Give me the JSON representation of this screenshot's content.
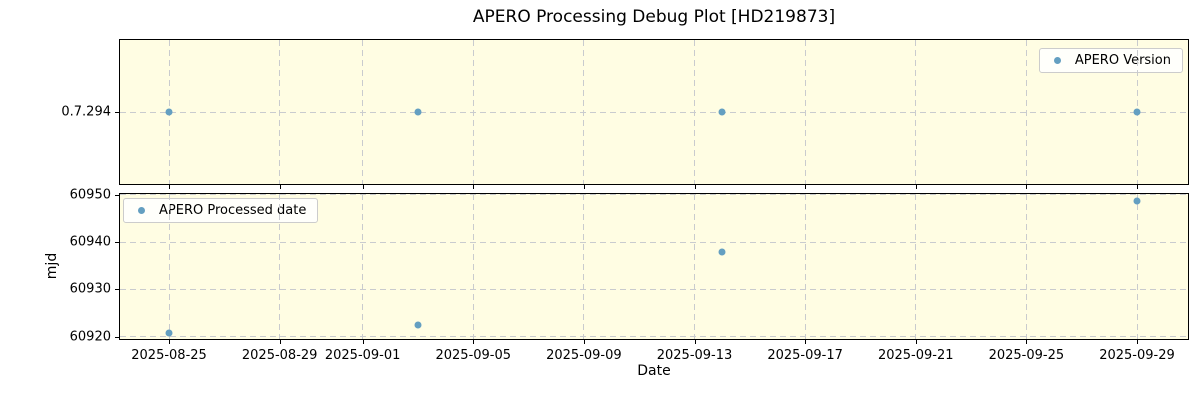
{
  "figure": {
    "title": "APERO Processing Debug Plot [HD219873]",
    "background_color": "#ffffff",
    "axes_background_color": "#fffde3",
    "marker_color": "#649fc1",
    "grid_color": "#c9cbce"
  },
  "x_axis": {
    "label": "Date",
    "tick_labels": [
      "2025-08-25",
      "2025-08-29",
      "2025-09-01",
      "2025-09-05",
      "2025-09-09",
      "2025-09-13",
      "2025-09-17",
      "2025-09-21",
      "2025-09-25",
      "2025-09-29"
    ],
    "base_date": "2025-08-25",
    "xlim_days": [
      -1.81,
      36.88
    ]
  },
  "chart_data": [
    {
      "type": "scatter",
      "name": "APERO Version",
      "legend": {
        "label": "APERO Version",
        "position": "upper right"
      },
      "x": [
        "2025-08-25",
        "2025-09-03",
        "2025-09-14",
        "2025-09-29"
      ],
      "values": [
        "0.7.294",
        "0.7.294",
        "0.7.294",
        "0.7.294"
      ],
      "yticks": [
        "0.7.294"
      ],
      "ylabel": "",
      "grid": true
    },
    {
      "type": "scatter",
      "name": "APERO Processed date",
      "legend": {
        "label": "APERO Processed date",
        "position": "upper left"
      },
      "x": [
        "2025-08-25",
        "2025-09-03",
        "2025-09-14",
        "2025-09-29"
      ],
      "values": [
        60920.8,
        60922.4,
        60937.9,
        60948.7
      ],
      "yticks": [
        60920,
        60930,
        60940,
        60950
      ],
      "ylim": [
        60919.3,
        60950.4
      ],
      "ylabel": "mjd",
      "grid": true
    }
  ]
}
